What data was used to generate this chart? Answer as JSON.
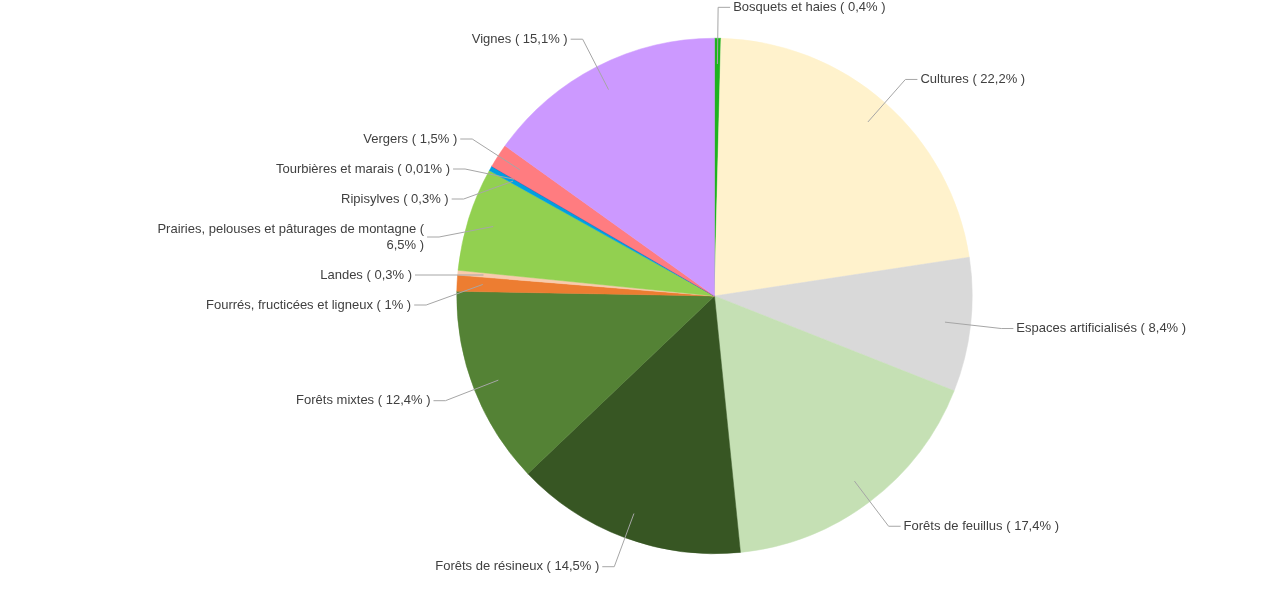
{
  "chart_data": {
    "type": "pie",
    "categories": [
      "Bosquets et haies",
      "Cultures",
      "Espaces artificialisés",
      "Forêts de feuillus",
      "Forêts de résineux",
      "Forêts mixtes",
      "Fourrés, fructicées et ligneux",
      "Landes",
      "Prairies, pelouses et pâturages de montagne",
      "Ripisylves",
      "Tourbières et marais",
      "Vergers",
      "Vignes"
    ],
    "values": [
      0.4,
      22.2,
      8.4,
      17.4,
      14.5,
      12.4,
      1,
      0.3,
      6.5,
      0.3,
      0.01,
      1.5,
      15.1
    ],
    "value_labels": [
      "( 0,4% )",
      "( 22,2% )",
      "( 8,4% )",
      "( 17,4% )",
      "( 14,5% )",
      "( 12,4% )",
      "( 1% )",
      "( 0,3% )",
      "( 6,5% )",
      "( 0,3% )",
      "( 0,01% )",
      "( 1,5% )",
      "( 15,1% )"
    ],
    "colors": [
      "#1fb21f",
      "#fff2cc",
      "#d9d9d9",
      "#c5e0b4",
      "#375623",
      "#548235",
      "#ed7d31",
      "#f8cbad",
      "#92d050",
      "#00a0e0",
      "#7030a0",
      "#ff7c80",
      "#cc99ff"
    ],
    "legend": false
  }
}
